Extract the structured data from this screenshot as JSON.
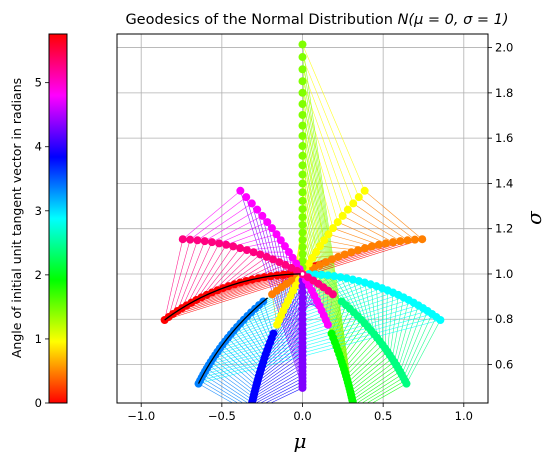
{
  "chart_data": {
    "type": "line",
    "title": "Geodesics of the Normal Distribution N(μ = 0, σ = 1)",
    "xlabel": "μ",
    "ylabel": "σ",
    "xlim": [
      -1.15,
      1.15
    ],
    "ylim": [
      0.43,
      2.06
    ],
    "xticks": [
      "−1.0",
      "−0.5",
      "0.0",
      "0.5",
      "1.0"
    ],
    "xtick_values": [
      -1.0,
      -0.5,
      0.0,
      0.5,
      1.0
    ],
    "yticks": [
      "0.6",
      "0.8",
      "1.0",
      "1.2",
      "1.4",
      "1.6",
      "1.8",
      "2.0"
    ],
    "ytick_values": [
      0.6,
      0.8,
      1.0,
      1.2,
      1.4,
      1.6,
      1.8,
      2.0
    ],
    "grid": true,
    "origin": {
      "mu": 0.0,
      "sigma": 1.0
    },
    "num_geodesics": 12,
    "points_per_geodesic": 25,
    "geodesic_length": 0.7,
    "highlighted_geodesics": [
      {
        "angle": 0.0,
        "color": "#000000"
      },
      {
        "angle": 3.6652,
        "color": "#000000"
      }
    ],
    "colorbar": {
      "label": "Angle of initial unit tangent vector in radians",
      "ticks": [
        "0",
        "1",
        "2",
        "3",
        "4",
        "5"
      ],
      "tick_values": [
        0,
        1,
        2,
        3,
        4,
        5
      ],
      "range": [
        0,
        5.7596
      ],
      "colormap": "hsv"
    }
  },
  "text": {
    "title_prefix": "Geodesics of the Normal Distribution ",
    "title_math": "N(μ = 0, σ = 1)",
    "xlabel": "μ",
    "ylabel": "σ",
    "cb_label": "Angle of initial unit tangent vector in radians"
  }
}
